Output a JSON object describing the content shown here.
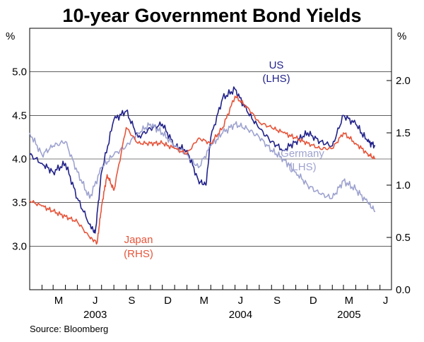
{
  "chart_data": {
    "type": "line",
    "title": "10-year Government Bond Yields",
    "source": "Source: Bloomberg",
    "left_axis": {
      "unit": "%",
      "min": 2.5,
      "max": 5.5,
      "ticks": [
        "3.0",
        "3.5",
        "4.0",
        "4.5",
        "5.0"
      ]
    },
    "right_axis": {
      "unit": "%",
      "min": 0.0,
      "max": 2.5,
      "ticks": [
        "0.0",
        "0.5",
        "1.0",
        "1.5",
        "2.0"
      ]
    },
    "x_axis": {
      "start": "2003-01-01",
      "end": "2005-06-30",
      "month_labels": [
        "M",
        "J",
        "S",
        "D",
        "M",
        "J",
        "S",
        "D",
        "M",
        "J"
      ],
      "month_label_dates": [
        "2003-03-15",
        "2003-06-15",
        "2003-09-15",
        "2003-12-15",
        "2004-03-15",
        "2004-06-15",
        "2004-09-15",
        "2004-12-15",
        "2005-03-15",
        "2005-06-15"
      ],
      "year_labels": [
        "2003",
        "2004",
        "2005"
      ],
      "year_label_dates": [
        "2003-06-15",
        "2004-06-15",
        "2005-03-15"
      ]
    },
    "series": [
      {
        "name": "US",
        "sublabel": "(LHS)",
        "axis": "left",
        "color": "#22228a",
        "dates": [
          "2003-01-01",
          "2003-02-01",
          "2003-03-01",
          "2003-04-01",
          "2003-05-01",
          "2003-06-01",
          "2003-06-15",
          "2003-07-01",
          "2003-08-01",
          "2003-09-01",
          "2003-10-01",
          "2003-11-01",
          "2003-12-01",
          "2004-01-01",
          "2004-02-01",
          "2004-03-01",
          "2004-03-20",
          "2004-04-01",
          "2004-05-01",
          "2004-06-01",
          "2004-07-01",
          "2004-08-01",
          "2004-09-01",
          "2004-10-01",
          "2004-11-01",
          "2004-12-01",
          "2005-01-01",
          "2005-02-01",
          "2005-03-01",
          "2005-04-01",
          "2005-05-01",
          "2005-05-20"
        ],
        "values": [
          4.05,
          3.95,
          3.85,
          3.95,
          3.55,
          3.25,
          3.15,
          3.85,
          4.45,
          4.55,
          4.25,
          4.35,
          4.4,
          4.15,
          4.1,
          3.75,
          3.7,
          4.25,
          4.7,
          4.8,
          4.55,
          4.35,
          4.2,
          4.1,
          4.2,
          4.3,
          4.2,
          4.15,
          4.5,
          4.4,
          4.2,
          4.15
        ]
      },
      {
        "name": "Germany",
        "sublabel": "(LHS)",
        "axis": "left",
        "color": "#9ea3cf",
        "dates": [
          "2003-01-01",
          "2003-02-01",
          "2003-03-01",
          "2003-04-01",
          "2003-05-01",
          "2003-06-01",
          "2003-07-01",
          "2003-08-01",
          "2003-09-01",
          "2003-10-01",
          "2003-11-01",
          "2003-12-01",
          "2004-01-01",
          "2004-02-01",
          "2004-03-01",
          "2004-04-01",
          "2004-05-01",
          "2004-06-01",
          "2004-07-01",
          "2004-08-01",
          "2004-09-01",
          "2004-10-01",
          "2004-11-01",
          "2004-12-01",
          "2005-01-01",
          "2005-02-01",
          "2005-03-01",
          "2005-04-01",
          "2005-05-01",
          "2005-05-20"
        ],
        "values": [
          4.3,
          4.05,
          4.15,
          4.2,
          3.85,
          3.55,
          3.9,
          4.05,
          4.15,
          4.3,
          4.4,
          4.3,
          4.15,
          4.05,
          3.9,
          4.15,
          4.3,
          4.4,
          4.35,
          4.25,
          4.1,
          4.0,
          3.85,
          3.7,
          3.6,
          3.55,
          3.75,
          3.65,
          3.5,
          3.4
        ]
      },
      {
        "name": "Japan",
        "sublabel": "(RHS)",
        "axis": "right",
        "color": "#e6553b",
        "dates": [
          "2003-01-01",
          "2003-02-01",
          "2003-03-01",
          "2003-04-01",
          "2003-05-01",
          "2003-06-01",
          "2003-06-20",
          "2003-07-01",
          "2003-07-15",
          "2003-08-01",
          "2003-09-01",
          "2003-10-01",
          "2003-11-01",
          "2003-12-01",
          "2004-01-01",
          "2004-02-01",
          "2004-03-01",
          "2004-04-01",
          "2004-05-01",
          "2004-06-01",
          "2004-07-01",
          "2004-08-01",
          "2004-09-01",
          "2004-10-01",
          "2004-11-01",
          "2004-12-01",
          "2005-01-01",
          "2005-02-01",
          "2005-03-01",
          "2005-04-01",
          "2005-05-01",
          "2005-05-20"
        ],
        "values": [
          0.85,
          0.8,
          0.75,
          0.7,
          0.65,
          0.5,
          0.45,
          0.8,
          1.1,
          0.95,
          1.55,
          1.4,
          1.4,
          1.4,
          1.35,
          1.3,
          1.45,
          1.4,
          1.55,
          1.85,
          1.75,
          1.6,
          1.55,
          1.5,
          1.45,
          1.4,
          1.35,
          1.35,
          1.5,
          1.4,
          1.3,
          1.25
        ]
      }
    ]
  }
}
